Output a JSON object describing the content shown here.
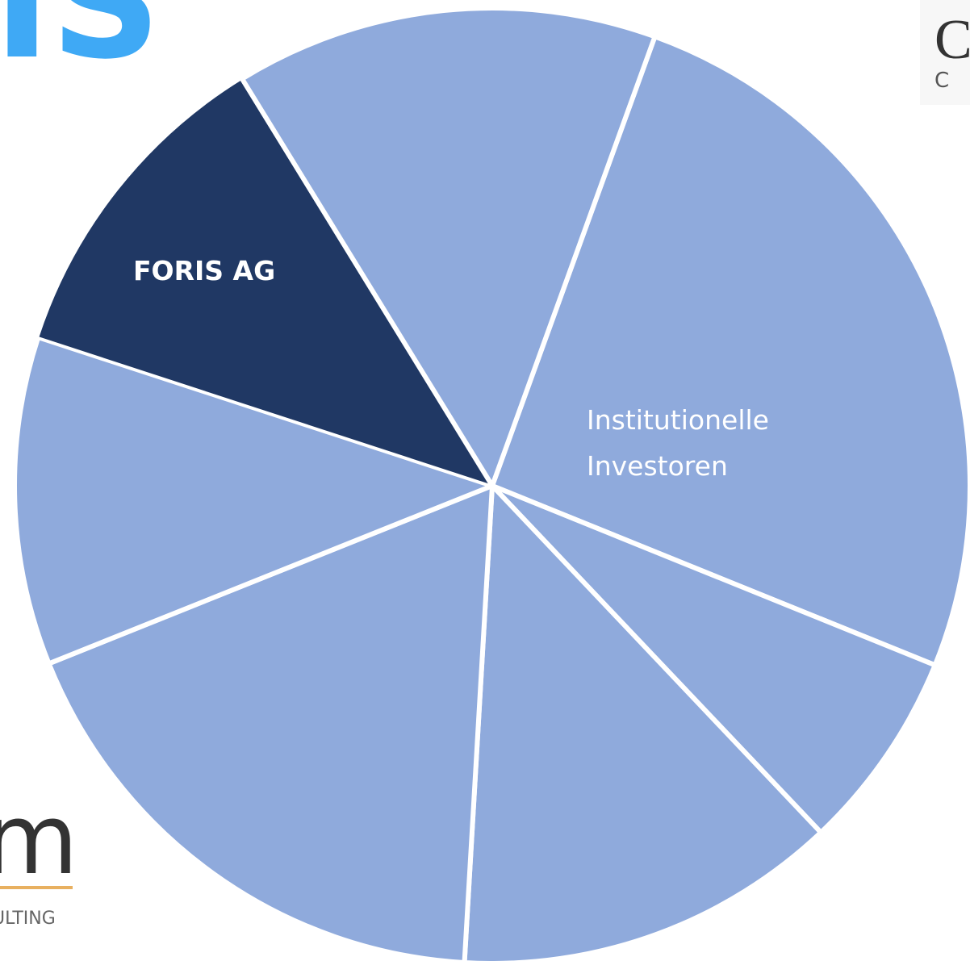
{
  "chart_data": {
    "type": "pie",
    "categories": [
      "Institutionelle Investoren",
      null,
      null,
      null,
      null,
      "FORIS AG",
      null
    ],
    "values": [
      25.6,
      6.8,
      13.0,
      18.0,
      11.1,
      11.2,
      14.3
    ],
    "colors": [
      "#8faadc",
      "#8faadc",
      "#8faadc",
      "#8faadc",
      "#8faadc",
      "#203864",
      "#8faadc"
    ]
  },
  "logos": {
    "top_left": "IS",
    "top_right": "C",
    "top_right_sub": "C",
    "bottom_left": "m",
    "bottom_left_sub": "ULTING"
  }
}
